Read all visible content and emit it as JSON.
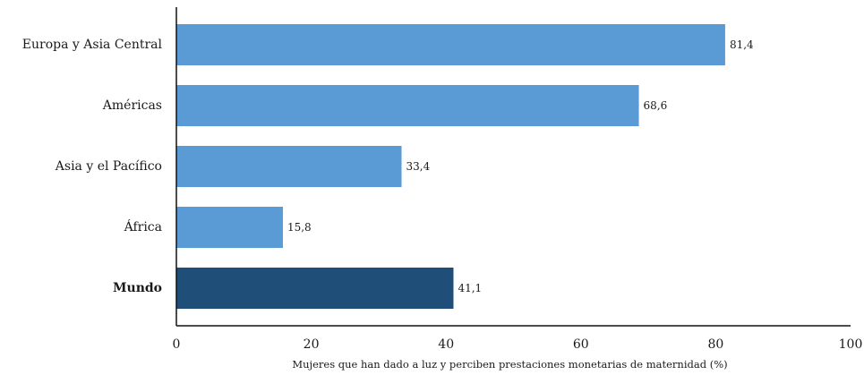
{
  "chart_data": {
    "type": "bar",
    "orientation": "horizontal",
    "categories": [
      "Europa y Asia Central",
      "Américas",
      "Asia y el Pacífico",
      "África",
      "Mundo"
    ],
    "values": [
      81.4,
      68.6,
      33.4,
      15.8,
      41.1
    ],
    "value_labels": [
      "81,4",
      "68,6",
      "33,4",
      "15,8",
      "41,1"
    ],
    "highlight": [
      false,
      false,
      false,
      false,
      true
    ],
    "title": "",
    "xlabel": "Mujeres que han dado a luz y perciben prestaciones monetarias de maternidad (%)",
    "ylabel": "",
    "xlim": [
      0,
      100
    ],
    "xticks": [
      0,
      20,
      40,
      60,
      80,
      100
    ],
    "xtick_labels": [
      "0",
      "20",
      "40",
      "60",
      "80",
      "100"
    ],
    "grid": false,
    "legend": "none",
    "colors": {
      "bar": "#5b9bd5",
      "bar_highlight": "#1f4e79",
      "axis": "#111111",
      "text": "#1a1a1a"
    }
  }
}
